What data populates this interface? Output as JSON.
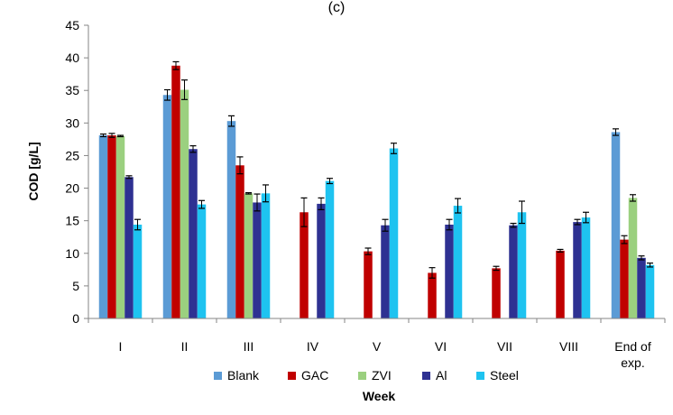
{
  "panel_label": "(c)",
  "chart_data": {
    "type": "bar",
    "categories": [
      "I",
      "II",
      "III",
      "IV",
      "V",
      "VI",
      "VII",
      "VIII",
      "End of exp."
    ],
    "xlabel": "Week",
    "ylabel": "COD [g/L]",
    "ylim": [
      0,
      45
    ],
    "yticks": [
      0,
      5,
      10,
      15,
      20,
      25,
      30,
      35,
      40,
      45
    ],
    "grid": false,
    "legend_position": "bottom",
    "series": [
      {
        "name": "Blank",
        "color": "#5b9bd5",
        "values": [
          28.1,
          34.3,
          30.3,
          null,
          null,
          null,
          null,
          null,
          28.6
        ],
        "errors": [
          0.2,
          0.8,
          0.8,
          null,
          null,
          null,
          null,
          null,
          0.5
        ]
      },
      {
        "name": "GAC",
        "color": "#c00000",
        "values": [
          28.1,
          38.8,
          23.5,
          16.3,
          10.3,
          7.0,
          7.7,
          10.4,
          12.1
        ],
        "errors": [
          0.3,
          0.6,
          1.3,
          2.2,
          0.5,
          0.8,
          0.3,
          0.2,
          0.6
        ]
      },
      {
        "name": "ZVI",
        "color": "#9bd07f",
        "values": [
          28.0,
          35.1,
          19.2,
          null,
          null,
          null,
          null,
          null,
          18.5
        ],
        "errors": [
          0.1,
          1.5,
          0.1,
          null,
          null,
          null,
          null,
          null,
          0.5
        ]
      },
      {
        "name": "Al",
        "color": "#2e3192",
        "values": [
          21.7,
          26.0,
          17.8,
          17.6,
          14.3,
          14.4,
          14.3,
          14.8,
          9.3
        ],
        "errors": [
          0.2,
          0.5,
          1.3,
          0.9,
          0.9,
          0.8,
          0.3,
          0.4,
          0.3
        ]
      },
      {
        "name": "Steel",
        "color": "#1ec3f0",
        "values": [
          14.4,
          17.5,
          19.2,
          21.1,
          26.1,
          17.3,
          16.3,
          15.5,
          8.2
        ],
        "errors": [
          0.8,
          0.6,
          1.3,
          0.4,
          0.8,
          1.1,
          1.7,
          0.8,
          0.3
        ]
      }
    ]
  }
}
